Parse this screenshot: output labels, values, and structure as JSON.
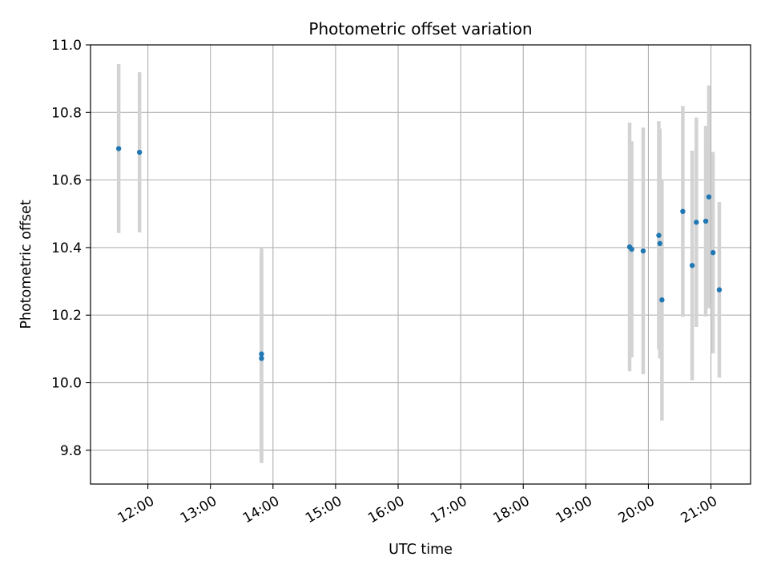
{
  "chart_data": {
    "type": "scatter",
    "title": "Photometric offset variation",
    "xlabel": "UTC time",
    "ylabel": "Photometric offset",
    "x_unit": "UTC time (HH:MM)",
    "xlim": [
      "11:05",
      "21:38"
    ],
    "ylim": [
      9.7,
      11.0
    ],
    "x_ticks": [
      "12:00",
      "13:00",
      "14:00",
      "15:00",
      "16:00",
      "17:00",
      "18:00",
      "19:00",
      "20:00",
      "21:00"
    ],
    "y_ticks": [
      9.8,
      10.0,
      10.2,
      10.4,
      10.6,
      10.8,
      11.0
    ],
    "grid": true,
    "legend": "none",
    "colors": {
      "point": "#1f77b4",
      "errorbar": "#d3d3d3",
      "grid": "#b0b0b0"
    },
    "points": [
      {
        "x": "11:32",
        "y": 10.693,
        "err": 0.25
      },
      {
        "x": "11:52",
        "y": 10.682,
        "err": 0.237
      },
      {
        "x": "13:49",
        "y": 10.085,
        "err": 0.315
      },
      {
        "x": "13:49",
        "y": 10.072,
        "err": 0.31
      },
      {
        "x": "19:42",
        "y": 10.402,
        "err": 0.368
      },
      {
        "x": "19:44",
        "y": 10.395,
        "err": 0.32
      },
      {
        "x": "19:55",
        "y": 10.39,
        "err": 0.365
      },
      {
        "x": "20:10",
        "y": 10.436,
        "err": 0.338
      },
      {
        "x": "20:11",
        "y": 10.412,
        "err": 0.34
      },
      {
        "x": "20:13",
        "y": 10.245,
        "err": 0.357
      },
      {
        "x": "20:33",
        "y": 10.507,
        "err": 0.312
      },
      {
        "x": "20:42",
        "y": 10.347,
        "err": 0.34
      },
      {
        "x": "20:46",
        "y": 10.475,
        "err": 0.31
      },
      {
        "x": "20:55",
        "y": 10.478,
        "err": 0.282
      },
      {
        "x": "20:58",
        "y": 10.55,
        "err": 0.33
      },
      {
        "x": "21:02",
        "y": 10.385,
        "err": 0.298
      },
      {
        "x": "21:08",
        "y": 10.275,
        "err": 0.26
      }
    ]
  }
}
